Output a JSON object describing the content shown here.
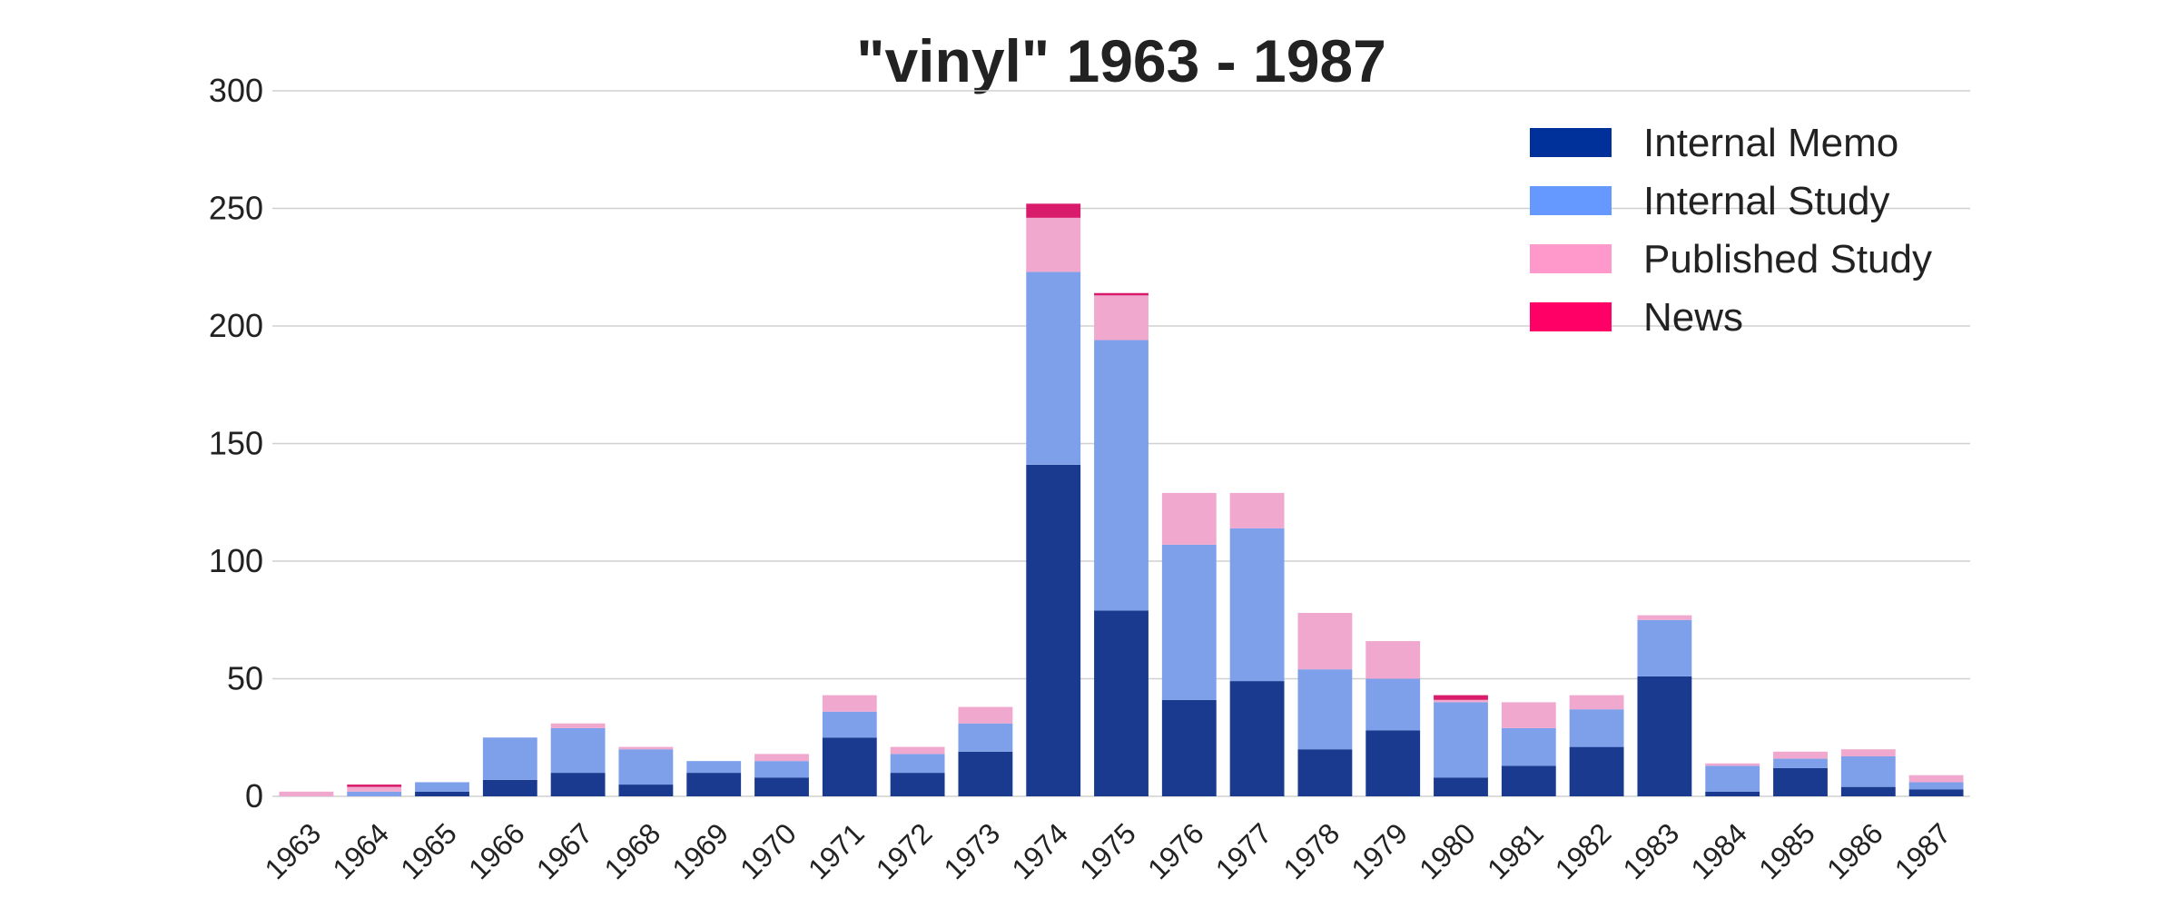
{
  "chart_data": {
    "type": "bar",
    "stacked": true,
    "title": "\"vinyl\" 1963 - 1987",
    "xlabel": "",
    "ylabel": "",
    "ylim": [
      0,
      300
    ],
    "yticks": [
      0,
      50,
      100,
      150,
      200,
      250,
      300
    ],
    "grid": true,
    "legend_position": "top-right",
    "categories": [
      "1963",
      "1964",
      "1965",
      "1966",
      "1967",
      "1968",
      "1969",
      "1970",
      "1971",
      "1972",
      "1973",
      "1974",
      "1975",
      "1976",
      "1977",
      "1978",
      "1979",
      "1980",
      "1981",
      "1982",
      "1983",
      "1984",
      "1985",
      "1986",
      "1987"
    ],
    "series": [
      {
        "name": "Internal Memo",
        "color": "#1a3a8f",
        "legend_color": "#00319a",
        "values": [
          0,
          0,
          2,
          7,
          10,
          5,
          10,
          8,
          25,
          10,
          19,
          141,
          79,
          41,
          49,
          20,
          28,
          8,
          13,
          21,
          51,
          2,
          12,
          4,
          3
        ]
      },
      {
        "name": "Internal Study",
        "color": "#7ea0ea",
        "legend_color": "#6699ff",
        "values": [
          0,
          2,
          4,
          18,
          19,
          15,
          5,
          7,
          11,
          8,
          12,
          82,
          115,
          66,
          65,
          34,
          22,
          32,
          16,
          16,
          24,
          11,
          4,
          13,
          3
        ]
      },
      {
        "name": "Published Study",
        "color": "#f0a8cf",
        "legend_color": "#ff99cc",
        "values": [
          2,
          2,
          0,
          0,
          2,
          1,
          0,
          3,
          7,
          3,
          7,
          23,
          19,
          22,
          15,
          24,
          16,
          1,
          11,
          6,
          2,
          1,
          3,
          3,
          3
        ]
      },
      {
        "name": "News",
        "color": "#d81b6a",
        "legend_color": "#ff0066",
        "values": [
          0,
          1,
          0,
          0,
          0,
          0,
          0,
          0,
          0,
          0,
          0,
          6,
          1,
          0,
          0,
          0,
          0,
          2,
          0,
          0,
          0,
          0,
          0,
          0,
          0
        ]
      }
    ]
  }
}
